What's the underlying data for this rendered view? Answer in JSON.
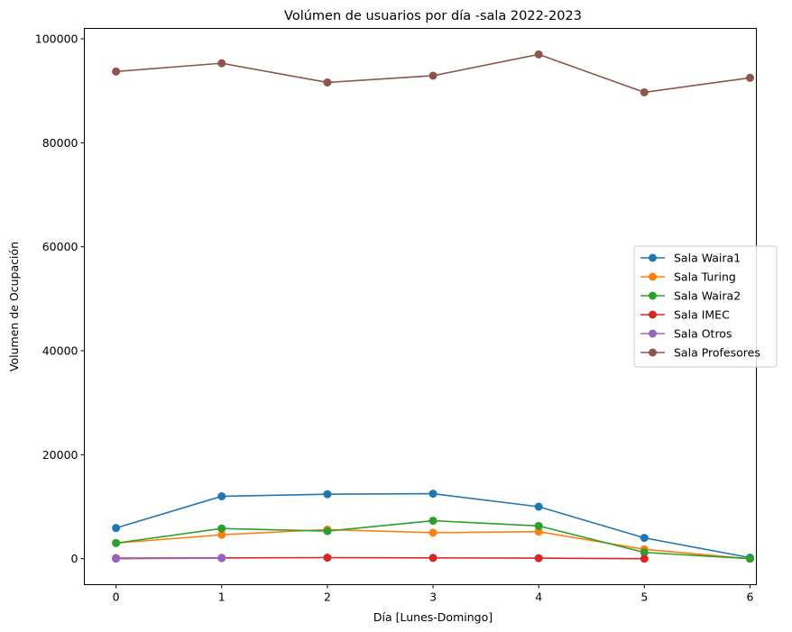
{
  "chart_data": {
    "type": "line",
    "title": "Volúmen de usuarios por día -sala  2022-2023",
    "xlabel": "Día [Lunes-Domingo]",
    "ylabel": "Volumen de Ocupación",
    "xlim": [
      -0.3,
      6.06
    ],
    "ylim": [
      -5000,
      102000
    ],
    "xticks": [
      0,
      1,
      2,
      3,
      4,
      5,
      6
    ],
    "yticks": [
      0,
      20000,
      40000,
      60000,
      80000,
      100000
    ],
    "grid": false,
    "legend_position": "center-right",
    "series": [
      {
        "name": "Sala Waira1",
        "color": "#1f77b4",
        "x": [
          0,
          1,
          2,
          3,
          4,
          5,
          6
        ],
        "values": [
          5900,
          12000,
          12400,
          12500,
          10000,
          4000,
          200
        ]
      },
      {
        "name": "Sala Turing",
        "color": "#ff7f0e",
        "x": [
          0,
          1,
          2,
          3,
          4,
          5,
          6
        ],
        "values": [
          3000,
          4600,
          5600,
          5000,
          5200,
          1800,
          0
        ]
      },
      {
        "name": "Sala Waira2",
        "color": "#2ca02c",
        "x": [
          0,
          1,
          2,
          3,
          4,
          5,
          6
        ],
        "values": [
          3000,
          5800,
          5300,
          7300,
          6300,
          1200,
          0
        ]
      },
      {
        "name": "Sala IMEC",
        "color": "#d62728",
        "x": [
          0,
          1,
          2,
          3,
          4,
          5
        ],
        "values": [
          100,
          150,
          200,
          150,
          100,
          0
        ]
      },
      {
        "name": "Sala Otros",
        "color": "#9467bd",
        "x": [
          0,
          1
        ],
        "values": [
          0,
          100
        ]
      },
      {
        "name": "Sala Profesores",
        "color": "#8c564b",
        "x": [
          0,
          1,
          2,
          3,
          4,
          5,
          6
        ],
        "values": [
          93700,
          95300,
          91600,
          92900,
          97000,
          89700,
          92500
        ]
      }
    ]
  }
}
